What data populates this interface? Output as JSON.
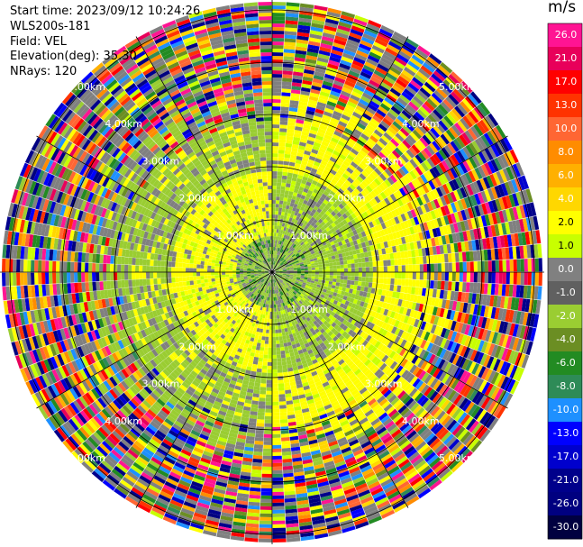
{
  "header": {
    "start_time": "Start time: 2023/09/12 10:24:26",
    "instrument": "WLS200s-181",
    "field": "Field: VEL",
    "elevation": "Elevation(deg): 35.30",
    "nrays": "NRays: 120"
  },
  "colorbar": {
    "units": "m/s",
    "labels": [
      "26.0",
      "21.0",
      "17.0",
      "13.0",
      "10.0",
      "8.0",
      "6.0",
      "4.0",
      "2.0",
      "1.0",
      "0.0",
      "-1.0",
      "-2.0",
      "-4.0",
      "-6.0",
      "-8.0",
      "-10.0",
      "-13.0",
      "-17.0",
      "-21.0",
      "-26.0",
      "-30.0"
    ],
    "colors": [
      "#ff1493",
      "#e8005a",
      "#ff0000",
      "#ff3300",
      "#ff6633",
      "#ff8c00",
      "#ffb000",
      "#ffd700",
      "#ffff00",
      "#c8ff00",
      "#808080",
      "#606060",
      "#9acd32",
      "#6b8e23",
      "#228b22",
      "#2e8b57",
      "#1e90ff",
      "#0000ff",
      "#0000cd",
      "#00008b",
      "#000080",
      "#000040"
    ]
  },
  "chart_data": {
    "type": "polar_ppi",
    "field": "VEL",
    "units": "m/s",
    "nrays": 120,
    "range_ring_labels": [
      "1.00km",
      "2.00km",
      "3.00km",
      "4.00km",
      "5.00km"
    ],
    "color_scale": [
      -30.0,
      26.0
    ]
  }
}
